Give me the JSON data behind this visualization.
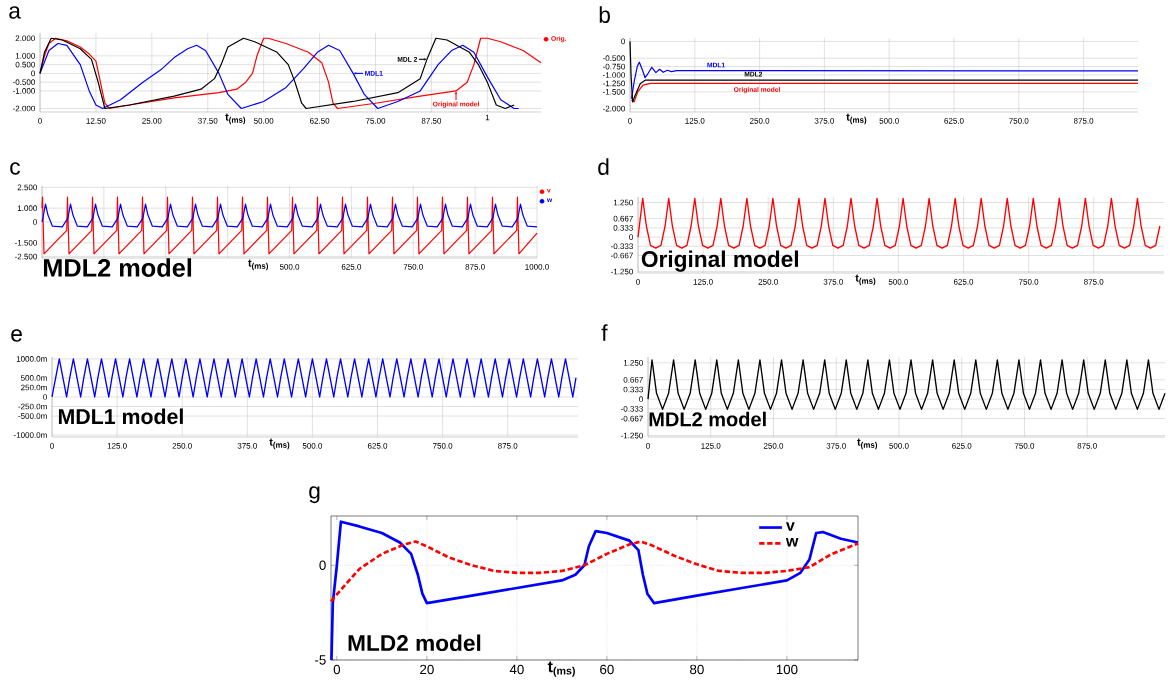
{
  "chart_data": [
    {
      "type": "line",
      "title": "a",
      "xlabel": "t$_{(ms)}$",
      "xlim": [
        0,
        112
      ],
      "ylim": [
        -2.2,
        2.3
      ],
      "xticks": [
        0,
        {
          "value": 12.5,
          "label": "12.50"
        },
        {
          "value": 25,
          "label": "25.00"
        },
        {
          "value": 37.5,
          "label": "37.50"
        },
        {
          "value": 50,
          "label": "50.00"
        },
        {
          "value": 62.5,
          "label": "62.50"
        },
        {
          "value": 75,
          "label": "75.00"
        },
        {
          "value": 87.5,
          "label": "87.50"
        },
        {
          "value": 100,
          "label": null
        }
      ],
      "yticks": [
        {
          "value": 2,
          "label": "2.000"
        },
        {
          "value": 1,
          "label": "1.000"
        },
        {
          "value": 0.5,
          "label": "0.500"
        },
        0,
        {
          "value": -0.5,
          "label": "-0.500"
        },
        {
          "value": -1,
          "label": "-1.000"
        },
        {
          "value": -2,
          "label": "-2.000"
        }
      ],
      "grid": true,
      "legend": "right",
      "annotations": [
        {
          "text": "MDL 2",
          "x": 86.5,
          "y": 0.8
        },
        {
          "text": "MDL1",
          "x": 70,
          "y": 0
        },
        {
          "text": "Original model",
          "x": 93,
          "y": -1.0
        },
        "1"
      ],
      "series": [
        {
          "name": "Orig.",
          "color": "#ff0000",
          "x": [
            0,
            1,
            2,
            3.5,
            6,
            9,
            11,
            12.5,
            13.5,
            14.5,
            15.5,
            20,
            30,
            40,
            44,
            46,
            47.5,
            48.5,
            50,
            51,
            55,
            60,
            63,
            64.5,
            65.5,
            66.5,
            75,
            85,
            93,
            95.5,
            97,
            98.5,
            100,
            103,
            108,
            112
          ],
          "values": [
            0,
            1.0,
            1.7,
            2.0,
            1.85,
            1.5,
            1.1,
            0.7,
            -0.5,
            -1.7,
            -2.0,
            -1.8,
            -1.4,
            -1.1,
            -0.9,
            -0.5,
            0,
            1.0,
            2.0,
            2.0,
            1.7,
            1.2,
            0.6,
            -0.5,
            -1.7,
            -2.0,
            -1.7,
            -1.3,
            -1.0,
            -0.5,
            0.5,
            2.0,
            2.0,
            1.8,
            1.3,
            0.6
          ]
        },
        {
          "color": "#0000ff",
          "x": [
            0,
            2,
            4,
            6,
            9,
            11,
            12.5,
            14,
            18,
            23,
            27,
            30,
            33,
            35,
            37,
            40,
            42,
            45,
            50,
            55,
            59,
            62,
            64.5,
            67,
            70,
            72.5,
            75.5,
            80,
            85,
            89,
            92,
            94.5,
            97,
            100,
            103,
            106,
            107
          ],
          "values": [
            0,
            1.3,
            1.7,
            1.6,
            0.5,
            -1.0,
            -1.8,
            -2.0,
            -1.5,
            -0.5,
            0.2,
            0.9,
            1.4,
            1.6,
            1.3,
            0,
            -1.2,
            -2.0,
            -1.6,
            -0.8,
            0.3,
            1.2,
            1.6,
            1.3,
            0,
            -1.2,
            -2.0,
            -1.6,
            -1.0,
            0.5,
            1.3,
            1.6,
            1.2,
            -0.2,
            -1.5,
            -2.0,
            -2.0
          ]
        },
        {
          "color": "#000000",
          "x": [
            0,
            1,
            2.5,
            5,
            9,
            11.5,
            13,
            14.5,
            20,
            30,
            36,
            39,
            40.5,
            42,
            45.5,
            48,
            53,
            55.5,
            57,
            58.5,
            59.5,
            70,
            80,
            85,
            86.5,
            88.5,
            91,
            96,
            98,
            100,
            102,
            104,
            106
          ],
          "values": [
            0,
            1.2,
            2.0,
            1.9,
            1.4,
            0.8,
            -0.5,
            -2.0,
            -1.8,
            -1.3,
            -0.9,
            -0.3,
            0.5,
            1.5,
            2.0,
            1.8,
            1.2,
            0.5,
            -0.5,
            -1.7,
            -2.0,
            -1.6,
            -1.1,
            -0.3,
            0.8,
            2.0,
            1.9,
            1.2,
            0.5,
            -0.5,
            -1.8,
            -2.0,
            -1.8
          ]
        }
      ]
    },
    {
      "type": "line",
      "title": "b",
      "xlabel": "t$_{(ms)}$",
      "xlim": [
        0,
        980
      ],
      "ylim": [
        -2.1,
        0.1
      ],
      "xticks": [
        0,
        {
          "value": 125,
          "label": "125.0"
        },
        {
          "value": 250,
          "label": "250.0"
        },
        {
          "value": 375,
          "label": "375.0"
        },
        {
          "value": 500,
          "label": "500.0"
        },
        {
          "value": 625,
          "label": "625.0"
        },
        {
          "value": 750,
          "label": "750.0"
        },
        {
          "value": 875,
          "label": "875.0"
        }
      ],
      "yticks": [
        0,
        {
          "value": -0.5,
          "label": "-0.500"
        },
        {
          "value": -0.75,
          "label": "-0.750"
        },
        {
          "value": -1,
          "label": "-1.000"
        },
        {
          "value": -1.25,
          "label": "-1.250"
        },
        {
          "value": -1.5,
          "label": "-1.500"
        },
        {
          "value": -2,
          "label": "-2.000"
        }
      ],
      "grid": true,
      "annotations": [
        {
          "text": "MDL1",
          "x": 166,
          "y": -0.88
        },
        {
          "text": "MDL2",
          "x": 238,
          "y": -1.15
        },
        {
          "text": "Original model",
          "x": 245,
          "y": -1.25
        }
      ],
      "series": [
        {
          "color": "#ff0000",
          "x": [
            3,
            8,
            15,
            25,
            40,
            980
          ],
          "values": [
            -1.75,
            -1.8,
            -1.5,
            -1.3,
            -1.25,
            -1.25
          ]
        },
        {
          "color": "#0000ff",
          "x": [
            3,
            8,
            14,
            18,
            24,
            29,
            35,
            42,
            50,
            57,
            64,
            72,
            80,
            90,
            980
          ],
          "values": [
            -1.7,
            -1.2,
            -0.75,
            -0.62,
            -0.85,
            -1.08,
            -0.95,
            -0.77,
            -0.93,
            -0.83,
            -0.92,
            -0.86,
            -0.9,
            -0.87,
            -0.88
          ]
        },
        {
          "color": "#000000",
          "x": [
            0,
            2,
            5,
            10,
            20,
            30,
            980
          ],
          "values": [
            0,
            -1.0,
            -1.8,
            -1.6,
            -1.25,
            -1.15,
            -1.15
          ]
        }
      ]
    },
    {
      "type": "line",
      "title": "c",
      "xlabel": "t$_{(ms)}$",
      "xlim": [
        0,
        1000
      ],
      "ylim": [
        -2.6,
        2.6
      ],
      "xticks": [
        {
          "value": 0,
          "label": null
        },
        {
          "value": 125,
          "label": null
        },
        {
          "value": 250,
          "label": null
        },
        {
          "value": 375,
          "label": null
        },
        {
          "value": 500,
          "label": "500.0"
        },
        {
          "value": 625,
          "label": "625.0"
        },
        {
          "value": 750,
          "label": "750.0"
        },
        {
          "value": 875,
          "label": "875.0"
        },
        {
          "value": 1000,
          "label": "1000.0"
        }
      ],
      "yticks": [
        {
          "value": 2.5,
          "label": "2.500"
        },
        {
          "value": 1,
          "label": "1.000"
        },
        0,
        {
          "value": -1.5,
          "label": "-1.500"
        },
        {
          "value": -2.5,
          "label": "-2.500"
        }
      ],
      "grid": true,
      "legend": "right",
      "annotations": [
        "MDL2 model"
      ],
      "series": [
        {
          "name": "v",
          "color": "#ff0000",
          "x": [
            0,
            1,
            4,
            50,
            51.5,
            54.5,
            100.5,
            102,
            105,
            151,
            152.5,
            155.5,
            201.5,
            203,
            206,
            252,
            253.5,
            256.5,
            302.5,
            304,
            307,
            353,
            354.5,
            357.5,
            403.5,
            405,
            408,
            454,
            455.5,
            458.5,
            504.5,
            506,
            509,
            555,
            556.5,
            559.5,
            605.5,
            607,
            610,
            656,
            657.5,
            660.5,
            706.5,
            708,
            711,
            757,
            758.5,
            761.5,
            807.5,
            809,
            812,
            858,
            859.5,
            862.5,
            908.5,
            910,
            913,
            959,
            960.5,
            963.5,
            1000
          ],
          "values": [
            1.0,
            1.8,
            -2.3,
            -0.6,
            1.8,
            -2.3,
            -0.6,
            1.8,
            -2.3,
            -0.6,
            1.8,
            -2.3,
            -0.6,
            1.8,
            -2.3,
            -0.6,
            1.8,
            -2.3,
            -0.6,
            1.8,
            -2.3,
            -0.6,
            1.8,
            -2.3,
            -0.6,
            1.8,
            -2.3,
            -0.6,
            1.8,
            -2.3,
            -0.6,
            1.8,
            -2.3,
            -0.6,
            1.8,
            -2.3,
            -0.6,
            1.8,
            -2.3,
            -0.6,
            1.8,
            -2.3,
            -0.6,
            1.8,
            -2.3,
            -0.6,
            1.8,
            -2.3,
            -0.6,
            1.8,
            -2.3,
            -0.6,
            1.8,
            -2.3,
            -0.6,
            1.8,
            -2.3,
            -0.6,
            1.8,
            -2.3,
            -0.8
          ]
        },
        {
          "name": "w",
          "color": "#0000ff",
          "x": [
            0,
            2,
            7,
            12,
            21,
            41,
            52.5,
            57.5,
            62.5,
            71.5,
            91.5,
            103,
            108,
            113,
            122,
            142,
            153.5,
            158.5,
            163.5,
            172.5,
            192.5,
            204,
            209,
            214,
            223,
            243,
            254.5,
            259.5,
            264.5,
            273.5,
            293.5,
            305,
            310,
            315,
            324,
            344,
            355.5,
            360.5,
            365.5,
            374.5,
            394.5,
            406,
            411,
            416,
            425,
            445,
            456.5,
            461.5,
            466.5,
            475.5,
            495.5,
            507,
            512,
            517,
            526,
            546,
            557.5,
            562.5,
            567.5,
            576.5,
            596.5,
            608,
            613,
            618,
            627,
            647,
            658.5,
            663.5,
            668.5,
            677.5,
            697.5,
            709,
            714,
            719,
            728,
            748,
            759.5,
            764.5,
            769.5,
            778.5,
            798.5,
            810,
            815,
            820,
            829,
            849,
            860.5,
            865.5,
            870.5,
            879.5,
            899.5,
            911,
            916,
            921,
            930,
            950,
            961.5,
            966.5,
            971.5,
            980.5,
            1000
          ],
          "values": [
            0,
            0.3,
            1.3,
            0.5,
            -0.3,
            -0.35,
            0.3,
            1.3,
            0.5,
            -0.3,
            -0.35,
            0.3,
            1.3,
            0.5,
            -0.3,
            -0.35,
            0.3,
            1.3,
            0.5,
            -0.3,
            -0.35,
            0.3,
            1.3,
            0.5,
            -0.3,
            -0.35,
            0.3,
            1.3,
            0.5,
            -0.3,
            -0.35,
            0.3,
            1.3,
            0.5,
            -0.3,
            -0.35,
            0.3,
            1.3,
            0.5,
            -0.3,
            -0.35,
            0.3,
            1.3,
            0.5,
            -0.3,
            -0.35,
            0.3,
            1.3,
            0.5,
            -0.3,
            -0.35,
            0.3,
            1.3,
            0.5,
            -0.3,
            -0.35,
            0.3,
            1.3,
            0.5,
            -0.3,
            -0.35,
            0.3,
            1.3,
            0.5,
            -0.3,
            -0.35,
            0.3,
            1.3,
            0.5,
            -0.3,
            -0.35,
            0.3,
            1.3,
            0.5,
            -0.3,
            -0.35,
            0.3,
            1.3,
            0.5,
            -0.3,
            -0.35,
            0.3,
            1.3,
            0.5,
            -0.3,
            -0.35,
            0.3,
            1.3,
            0.5,
            -0.3,
            -0.35,
            0.3,
            1.3,
            0.5,
            -0.3,
            -0.35,
            0.3,
            1.3,
            0.5,
            -0.3,
            -0.35
          ]
        }
      ]
    },
    {
      "type": "line",
      "title": "d",
      "xlabel": "t$_{(ms)}$",
      "xlim": [
        0,
        1010
      ],
      "ylim": [
        -1.3,
        1.45
      ],
      "xticks": [
        0,
        {
          "value": 125,
          "label": "125.0"
        },
        {
          "value": 250,
          "label": "250.0"
        },
        {
          "value": 375,
          "label": "375.0"
        },
        {
          "value": 500,
          "label": "500.0"
        },
        {
          "value": 625,
          "label": "625.0"
        },
        {
          "value": 750,
          "label": "750.0"
        },
        {
          "value": 875,
          "label": "875.0"
        }
      ],
      "yticks": [
        {
          "value": 1.25,
          "label": "1.250"
        },
        {
          "value": 0.667,
          "label": "0.667"
        },
        {
          "value": 0.333,
          "label": "0.333"
        },
        0,
        {
          "value": -0.333,
          "label": "-0.333"
        },
        {
          "value": -0.667,
          "label": "-0.667"
        },
        {
          "value": -1.25,
          "label": "-1.250"
        }
      ],
      "grid": true,
      "annotations": [
        "Original  model"
      ],
      "series": [
        {
          "color": "#ff0000",
          "x": [
            0,
            9,
            16,
            24,
            34,
            44,
            52,
            59,
            66,
            74,
            84,
            94,
            102,
            109,
            116,
            124,
            134,
            144,
            152,
            159,
            166,
            174,
            184,
            194,
            202,
            209,
            216,
            224,
            234,
            244,
            252,
            259,
            266,
            274,
            284,
            294,
            302,
            309,
            316,
            324,
            334,
            344,
            352,
            359,
            366,
            374,
            384,
            394,
            402,
            409,
            416,
            424,
            434,
            444,
            452,
            459,
            466,
            474,
            484,
            494,
            502,
            509,
            516,
            524,
            534,
            544,
            552,
            559,
            566,
            574,
            584,
            594,
            602,
            609,
            616,
            624,
            634,
            644,
            652,
            659,
            666,
            674,
            684,
            694,
            702,
            709,
            716,
            724,
            734,
            744,
            752,
            759,
            766,
            774,
            784,
            794,
            802,
            809,
            816,
            824,
            834,
            844,
            852,
            859,
            866,
            874,
            884,
            894,
            902,
            909,
            916,
            924,
            934,
            944,
            952,
            959,
            966,
            974,
            984,
            994,
            1002
          ],
          "values": [
            0,
            1.4,
            0.4,
            -0.3,
            -0.4,
            -0.3,
            0.4,
            1.4,
            0.4,
            -0.3,
            -0.4,
            -0.3,
            0.4,
            1.4,
            0.4,
            -0.3,
            -0.4,
            -0.3,
            0.4,
            1.4,
            0.4,
            -0.3,
            -0.4,
            -0.3,
            0.4,
            1.4,
            0.4,
            -0.3,
            -0.4,
            -0.3,
            0.4,
            1.4,
            0.4,
            -0.3,
            -0.4,
            -0.3,
            0.4,
            1.4,
            0.4,
            -0.3,
            -0.4,
            -0.3,
            0.4,
            1.4,
            0.4,
            -0.3,
            -0.4,
            -0.3,
            0.4,
            1.4,
            0.4,
            -0.3,
            -0.4,
            -0.3,
            0.4,
            1.4,
            0.4,
            -0.3,
            -0.4,
            -0.3,
            0.4,
            1.4,
            0.4,
            -0.3,
            -0.4,
            -0.3,
            0.4,
            1.4,
            0.4,
            -0.3,
            -0.4,
            -0.3,
            0.4,
            1.4,
            0.4,
            -0.3,
            -0.4,
            -0.3,
            0.4,
            1.4,
            0.4,
            -0.3,
            -0.4,
            -0.3,
            0.4,
            1.4,
            0.4,
            -0.3,
            -0.4,
            -0.3,
            0.4,
            1.4,
            0.4,
            -0.3,
            -0.4,
            -0.3,
            0.4,
            1.4,
            0.4,
            -0.3,
            -0.4,
            -0.3,
            0.4,
            1.4,
            0.4,
            -0.3,
            -0.4,
            -0.3,
            0.4,
            1.4,
            0.4,
            -0.3,
            -0.4,
            -0.3,
            0.4,
            1.4,
            0.4,
            -0.3,
            -0.4,
            -0.3,
            0.4
          ]
        }
      ]
    },
    {
      "type": "line",
      "title": "e",
      "xlabel": "t$_{(ms)}$",
      "xlim": [
        0,
        1010
      ],
      "ylim": [
        -1050,
        1050
      ],
      "xticks": [
        0,
        {
          "value": 125,
          "label": "125.0"
        },
        {
          "value": 250,
          "label": "250.0"
        },
        {
          "value": 375,
          "label": "375.0"
        },
        {
          "value": 500,
          "label": "500.0"
        },
        {
          "value": 625,
          "label": "625.0"
        },
        {
          "value": 750,
          "label": "750.0"
        },
        {
          "value": 875,
          "label": "875.0"
        }
      ],
      "yticks": [
        {
          "value": 1000,
          "label": "1000.0m"
        },
        {
          "value": 500,
          "label": "500.0m"
        },
        {
          "value": 250,
          "label": "250.0m"
        },
        0,
        {
          "value": -250,
          "label": "-250.0m"
        },
        {
          "value": -500,
          "label": "-500.0m"
        },
        {
          "value": -1000,
          "label": "-1000.0m"
        }
      ],
      "grid": true,
      "annotations": [
        "MDL1  model"
      ],
      "series": [
        {
          "color": "#0000ff",
          "x": [
            0,
            7,
            14,
            21,
            28,
            34,
            41,
            48,
            55,
            61,
            68,
            75,
            82,
            88,
            95,
            102,
            109,
            115,
            122,
            129,
            136,
            142,
            149,
            156,
            163,
            169,
            176,
            183,
            190,
            196,
            203,
            210,
            217,
            223,
            230,
            237,
            244,
            250,
            257,
            264,
            271,
            277,
            284,
            291,
            298,
            304,
            311,
            318,
            325,
            331,
            338,
            345,
            352,
            358,
            365,
            372,
            379,
            385,
            392,
            399,
            406,
            412,
            419,
            426,
            433,
            439,
            446,
            453,
            460,
            466,
            473,
            480,
            487,
            493,
            500,
            507,
            514,
            520,
            527,
            534,
            541,
            547,
            554,
            561,
            568,
            574,
            581,
            588,
            595,
            601,
            608,
            615,
            622,
            628,
            635,
            642,
            649,
            655,
            662,
            669,
            676,
            682,
            689,
            696,
            703,
            709,
            716,
            723,
            730,
            736,
            743,
            750,
            757,
            763,
            770,
            777,
            784,
            790,
            797,
            804,
            811,
            817,
            824,
            831,
            838,
            844,
            851,
            858,
            865,
            871,
            878,
            885,
            892,
            898,
            905,
            912,
            919,
            925,
            932,
            939,
            946,
            952,
            959,
            966,
            973,
            979,
            986,
            993,
            1000,
            1006
          ],
          "values": [
            0,
            500,
            1000,
            500,
            0,
            500,
            1000,
            500,
            0,
            500,
            1000,
            500,
            0,
            500,
            1000,
            500,
            0,
            500,
            1000,
            500,
            0,
            500,
            1000,
            500,
            0,
            500,
            1000,
            500,
            0,
            500,
            1000,
            500,
            0,
            500,
            1000,
            500,
            0,
            500,
            1000,
            500,
            0,
            500,
            1000,
            500,
            0,
            500,
            1000,
            500,
            0,
            500,
            1000,
            500,
            0,
            500,
            1000,
            500,
            0,
            500,
            1000,
            500,
            0,
            500,
            1000,
            500,
            0,
            500,
            1000,
            500,
            0,
            500,
            1000,
            500,
            0,
            500,
            1000,
            500,
            0,
            500,
            1000,
            500,
            0,
            500,
            1000,
            500,
            0,
            500,
            1000,
            500,
            0,
            500,
            1000,
            500,
            0,
            500,
            1000,
            500,
            0,
            500,
            1000,
            500,
            0,
            500,
            1000,
            500,
            0,
            500,
            1000,
            500,
            0,
            500,
            1000,
            500,
            0,
            500,
            1000,
            500,
            0,
            500,
            1000,
            500,
            0,
            500,
            1000,
            500,
            0,
            500,
            1000,
            500,
            0,
            500,
            1000,
            500,
            0,
            500,
            1000,
            500,
            0,
            500,
            1000,
            500,
            0,
            500,
            1000,
            500,
            0,
            500,
            1000,
            500,
            0,
            500
          ]
        }
      ]
    },
    {
      "type": "line",
      "title": "f",
      "xlabel": "t$_{(ms)}$",
      "xlim": [
        0,
        1030
      ],
      "ylim": [
        -1.3,
        1.45
      ],
      "xticks": [
        0,
        {
          "value": 125,
          "label": "125.0"
        },
        {
          "value": 250,
          "label": "250.0"
        },
        {
          "value": 375,
          "label": "375.0"
        },
        {
          "value": 500,
          "label": "500.0"
        },
        {
          "value": 625,
          "label": "625.0"
        },
        {
          "value": 750,
          "label": "750.0"
        },
        {
          "value": 875,
          "label": "875.0"
        }
      ],
      "yticks": [
        {
          "value": 1.25,
          "label": "1.250"
        },
        {
          "value": 0.667,
          "label": "0.667"
        },
        {
          "value": 0.333,
          "label": "0.333"
        },
        0,
        {
          "value": -0.333,
          "label": "-0.333"
        },
        {
          "value": -0.667,
          "label": "-0.667"
        },
        {
          "value": -1.25,
          "label": "-1.250"
        }
      ],
      "grid": true,
      "annotations": [
        "MDL2 model"
      ],
      "series": [
        {
          "color": "#000000",
          "x": [
            0,
            8,
            17,
            29,
            41,
            51,
            60,
            72,
            84,
            94,
            103,
            115,
            127,
            137,
            146,
            158,
            170,
            180,
            189,
            201,
            213,
            223,
            232,
            244,
            256,
            266,
            275,
            287,
            299,
            309,
            318,
            330,
            342,
            352,
            361,
            373,
            385,
            395,
            404,
            416,
            428,
            438,
            447,
            459,
            471,
            481,
            490,
            502,
            514,
            524,
            533,
            545,
            557,
            567,
            576,
            588,
            600,
            610,
            619,
            631,
            643,
            653,
            662,
            674,
            686,
            696,
            705,
            717,
            729,
            739,
            748,
            760,
            772,
            782,
            791,
            803,
            815,
            825,
            834,
            846,
            858,
            868,
            877,
            889,
            901,
            911,
            920,
            932,
            944,
            954,
            963,
            975,
            987,
            997,
            1006,
            1018,
            1030
          ],
          "values": [
            0,
            1.35,
            0.2,
            -0.35,
            0.2,
            1.35,
            0.2,
            -0.35,
            0.2,
            1.35,
            0.2,
            -0.35,
            0.2,
            1.35,
            0.2,
            -0.35,
            0.2,
            1.35,
            0.2,
            -0.35,
            0.2,
            1.35,
            0.2,
            -0.35,
            0.2,
            1.35,
            0.2,
            -0.35,
            0.2,
            1.35,
            0.2,
            -0.35,
            0.2,
            1.35,
            0.2,
            -0.35,
            0.2,
            1.35,
            0.2,
            -0.35,
            0.2,
            1.35,
            0.2,
            -0.35,
            0.2,
            1.35,
            0.2,
            -0.35,
            0.2,
            1.35,
            0.2,
            -0.35,
            0.2,
            1.35,
            0.2,
            -0.35,
            0.2,
            1.35,
            0.2,
            -0.35,
            0.2,
            1.35,
            0.2,
            -0.35,
            0.2,
            1.35,
            0.2,
            -0.35,
            0.2,
            1.35,
            0.2,
            -0.35,
            0.2,
            1.35,
            0.2,
            -0.35,
            0.2,
            1.35,
            0.2,
            -0.35,
            0.2,
            1.35,
            0.2,
            -0.35,
            0.2,
            1.35,
            0.2,
            -0.35,
            0.2,
            1.35,
            0.2,
            -0.35,
            0.2,
            1.35,
            0.2,
            -0.35,
            0.2
          ]
        }
      ]
    },
    {
      "type": "line",
      "title": "g",
      "xlabel": "t$_{(ms)}$",
      "xlim": [
        -1.3,
        115.8
      ],
      "ylim": [
        -5,
        2.6
      ],
      "xticks": [
        0,
        20,
        40,
        60,
        80,
        100
      ],
      "yticks": [
        -5,
        0
      ],
      "grid": true,
      "legend": "top right",
      "annotations": [
        "MLD2 model"
      ],
      "series": [
        {
          "name": "v",
          "color": "#0000ff",
          "x": [
            -1.2,
            -0.9,
            0,
            0.9,
            5,
            10,
            14,
            16.5,
            18,
            19,
            20,
            25,
            30,
            40,
            50,
            53,
            55,
            56,
            57.5,
            60,
            65,
            67,
            68,
            69,
            70.5,
            80,
            90,
            100,
            103,
            105,
            106.5,
            108,
            112,
            115.8
          ],
          "values": [
            -5,
            -2,
            0,
            2.3,
            2.05,
            1.7,
            1.2,
            0.6,
            -0.5,
            -1.5,
            -2.0,
            -1.8,
            -1.6,
            -1.2,
            -0.8,
            -0.5,
            0,
            1.0,
            1.8,
            1.7,
            1.3,
            0.8,
            -0.5,
            -1.5,
            -2.0,
            -1.6,
            -1.2,
            -0.8,
            -0.4,
            0.3,
            1.7,
            1.75,
            1.4,
            1.2
          ]
        },
        {
          "name": "w",
          "color": "#ff0000",
          "line_style": "dashed",
          "x": [
            -1.3,
            2,
            5,
            10,
            15,
            17.5,
            20,
            25,
            30,
            35,
            40,
            45,
            50,
            55,
            60,
            65,
            67.5,
            70,
            75,
            80,
            85,
            90,
            95,
            100,
            105,
            110,
            115.8
          ],
          "values": [
            -1.9,
            -1.0,
            -0.2,
            0.6,
            1.1,
            1.25,
            1.0,
            0.4,
            0,
            -0.3,
            -0.4,
            -0.4,
            -0.3,
            0,
            0.6,
            1.1,
            1.25,
            1.05,
            0.5,
            0.05,
            -0.3,
            -0.4,
            -0.4,
            -0.3,
            -0.1,
            0.6,
            1.15
          ]
        }
      ]
    }
  ]
}
